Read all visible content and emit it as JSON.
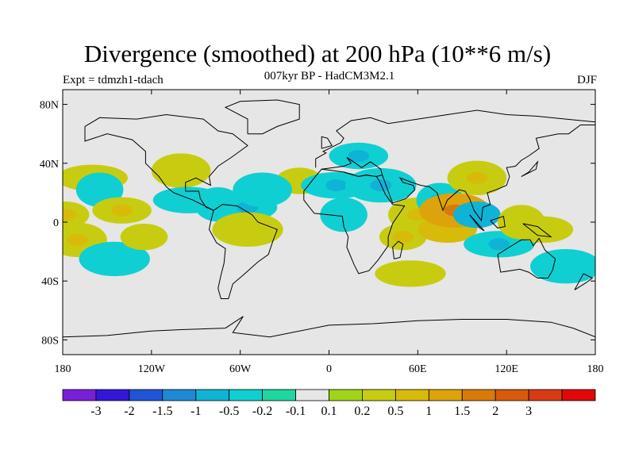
{
  "title": "Divergence (smoothed) at 200 hPa (10**6 m/s)",
  "subtitle": "007kyr BP - HadCM3M2.1",
  "expt_label": "Expt = tdmzh1-tdach",
  "season": "DJF",
  "lat_ticks": [
    {
      "label": "80N",
      "lat": 80
    },
    {
      "label": "40N",
      "lat": 40
    },
    {
      "label": "0",
      "lat": 0
    },
    {
      "label": "40S",
      "lat": -40
    },
    {
      "label": "80S",
      "lat": -80
    }
  ],
  "lon_ticks": [
    {
      "label": "180",
      "lon": -180
    },
    {
      "label": "120W",
      "lon": -120
    },
    {
      "label": "60W",
      "lon": -60
    },
    {
      "label": "0",
      "lon": 0
    },
    {
      "label": "60E",
      "lon": 60
    },
    {
      "label": "120E",
      "lon": 120
    },
    {
      "label": "180",
      "lon": 180
    }
  ],
  "colorbar": {
    "colors": [
      "#7a1fd8",
      "#3316d8",
      "#1f55d6",
      "#1c8ad6",
      "#0fb3d6",
      "#10cfd2",
      "#1ed6a0",
      "#e6e6e6",
      "#a0d418",
      "#c8cc10",
      "#d8ba0a",
      "#dca40a",
      "#d87a08",
      "#d85a0a",
      "#d83a14",
      "#e00808"
    ],
    "labels": [
      "-3",
      "-2",
      "-1.5",
      "-1",
      "-0.5",
      "-0.2",
      "-0.1",
      "0.1",
      "0.2",
      "0.5",
      "1",
      "1.5",
      "2",
      "3"
    ]
  },
  "chart_data": {
    "type": "heatmap",
    "title": "Divergence (smoothed) at 200 hPa (10**6 m/s)",
    "subtitle": "007kyr BP - HadCM3M2.1",
    "experiment": "Expt = tdmzh1-tdach",
    "season": "DJF",
    "xlim": [
      -180,
      180
    ],
    "ylim": [
      -90,
      90
    ],
    "levels": [
      -3,
      -2,
      -1.5,
      -1,
      -0.5,
      -0.2,
      -0.1,
      0.1,
      0.2,
      0.5,
      1,
      1.5,
      2,
      3
    ],
    "features": [
      {
        "lon": -178,
        "lat": 5,
        "value": 0.4
      },
      {
        "lon": -170,
        "lat": -12,
        "value": 0.4
      },
      {
        "lon": -160,
        "lat": 30,
        "value": 0.3
      },
      {
        "lon": -155,
        "lat": 22,
        "value": -0.3
      },
      {
        "lon": -140,
        "lat": 8,
        "value": 0.4
      },
      {
        "lon": -145,
        "lat": -25,
        "value": -0.3
      },
      {
        "lon": -125,
        "lat": -10,
        "value": 0.3
      },
      {
        "lon": -100,
        "lat": 35,
        "value": 0.3
      },
      {
        "lon": -95,
        "lat": 15,
        "value": -0.3
      },
      {
        "lon": -75,
        "lat": 12,
        "value": -0.3
      },
      {
        "lon": -55,
        "lat": 10,
        "value": -0.4
      },
      {
        "lon": -55,
        "lat": -5,
        "value": 0.3
      },
      {
        "lon": -20,
        "lat": 28,
        "value": 0.3
      },
      {
        "lon": -45,
        "lat": 22,
        "value": -0.3
      },
      {
        "lon": 5,
        "lat": 25,
        "value": -0.5
      },
      {
        "lon": 10,
        "lat": 5,
        "value": -0.3
      },
      {
        "lon": 20,
        "lat": 45,
        "value": -0.4
      },
      {
        "lon": 35,
        "lat": 25,
        "value": -0.5
      },
      {
        "lon": 50,
        "lat": -10,
        "value": 0.4
      },
      {
        "lon": 60,
        "lat": 5,
        "value": 0.4
      },
      {
        "lon": 55,
        "lat": -35,
        "value": 0.3
      },
      {
        "lon": 75,
        "lat": 15,
        "value": -0.5
      },
      {
        "lon": 80,
        "lat": -5,
        "value": 0.5
      },
      {
        "lon": 85,
        "lat": 8,
        "value": 1.0
      },
      {
        "lon": 100,
        "lat": 5,
        "value": -0.6
      },
      {
        "lon": 100,
        "lat": 30,
        "value": 0.4
      },
      {
        "lon": 115,
        "lat": -15,
        "value": -0.4
      },
      {
        "lon": 130,
        "lat": 0,
        "value": 0.3
      },
      {
        "lon": 145,
        "lat": -5,
        "value": 0.3
      },
      {
        "lon": 160,
        "lat": -30,
        "value": -0.3
      }
    ]
  }
}
